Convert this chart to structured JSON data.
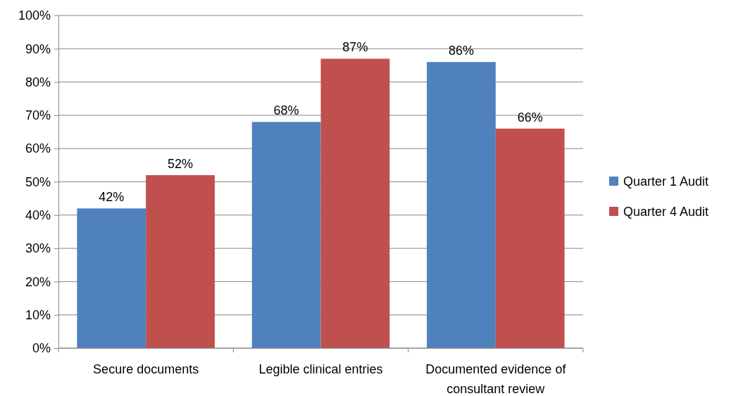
{
  "chart_data": {
    "type": "bar",
    "categories": [
      "Secure documents",
      "Legible clinical entries",
      "Documented evidence of consultant review"
    ],
    "series": [
      {
        "name": "Quarter 1 Audit",
        "color": "#4f81bd",
        "values": [
          42,
          68,
          86
        ],
        "value_labels": [
          "42%",
          "68%",
          "86%"
        ]
      },
      {
        "name": "Quarter 4 Audit",
        "color": "#c0504d",
        "values": [
          52,
          87,
          66
        ],
        "value_labels": [
          "52%",
          "87%",
          "66%"
        ]
      }
    ],
    "ylim": [
      0,
      100
    ],
    "yticks": [
      {
        "value": 0,
        "label": "0%"
      },
      {
        "value": 10,
        "label": "10%"
      },
      {
        "value": 20,
        "label": "20%"
      },
      {
        "value": 30,
        "label": "30%"
      },
      {
        "value": 40,
        "label": "40%"
      },
      {
        "value": 50,
        "label": "50%"
      },
      {
        "value": 60,
        "label": "60%"
      },
      {
        "value": 70,
        "label": "70%"
      },
      {
        "value": 80,
        "label": "80%"
      },
      {
        "value": 90,
        "label": "90%"
      },
      {
        "value": 100,
        "label": "100%"
      }
    ],
    "grid": "y",
    "legend": "right"
  }
}
